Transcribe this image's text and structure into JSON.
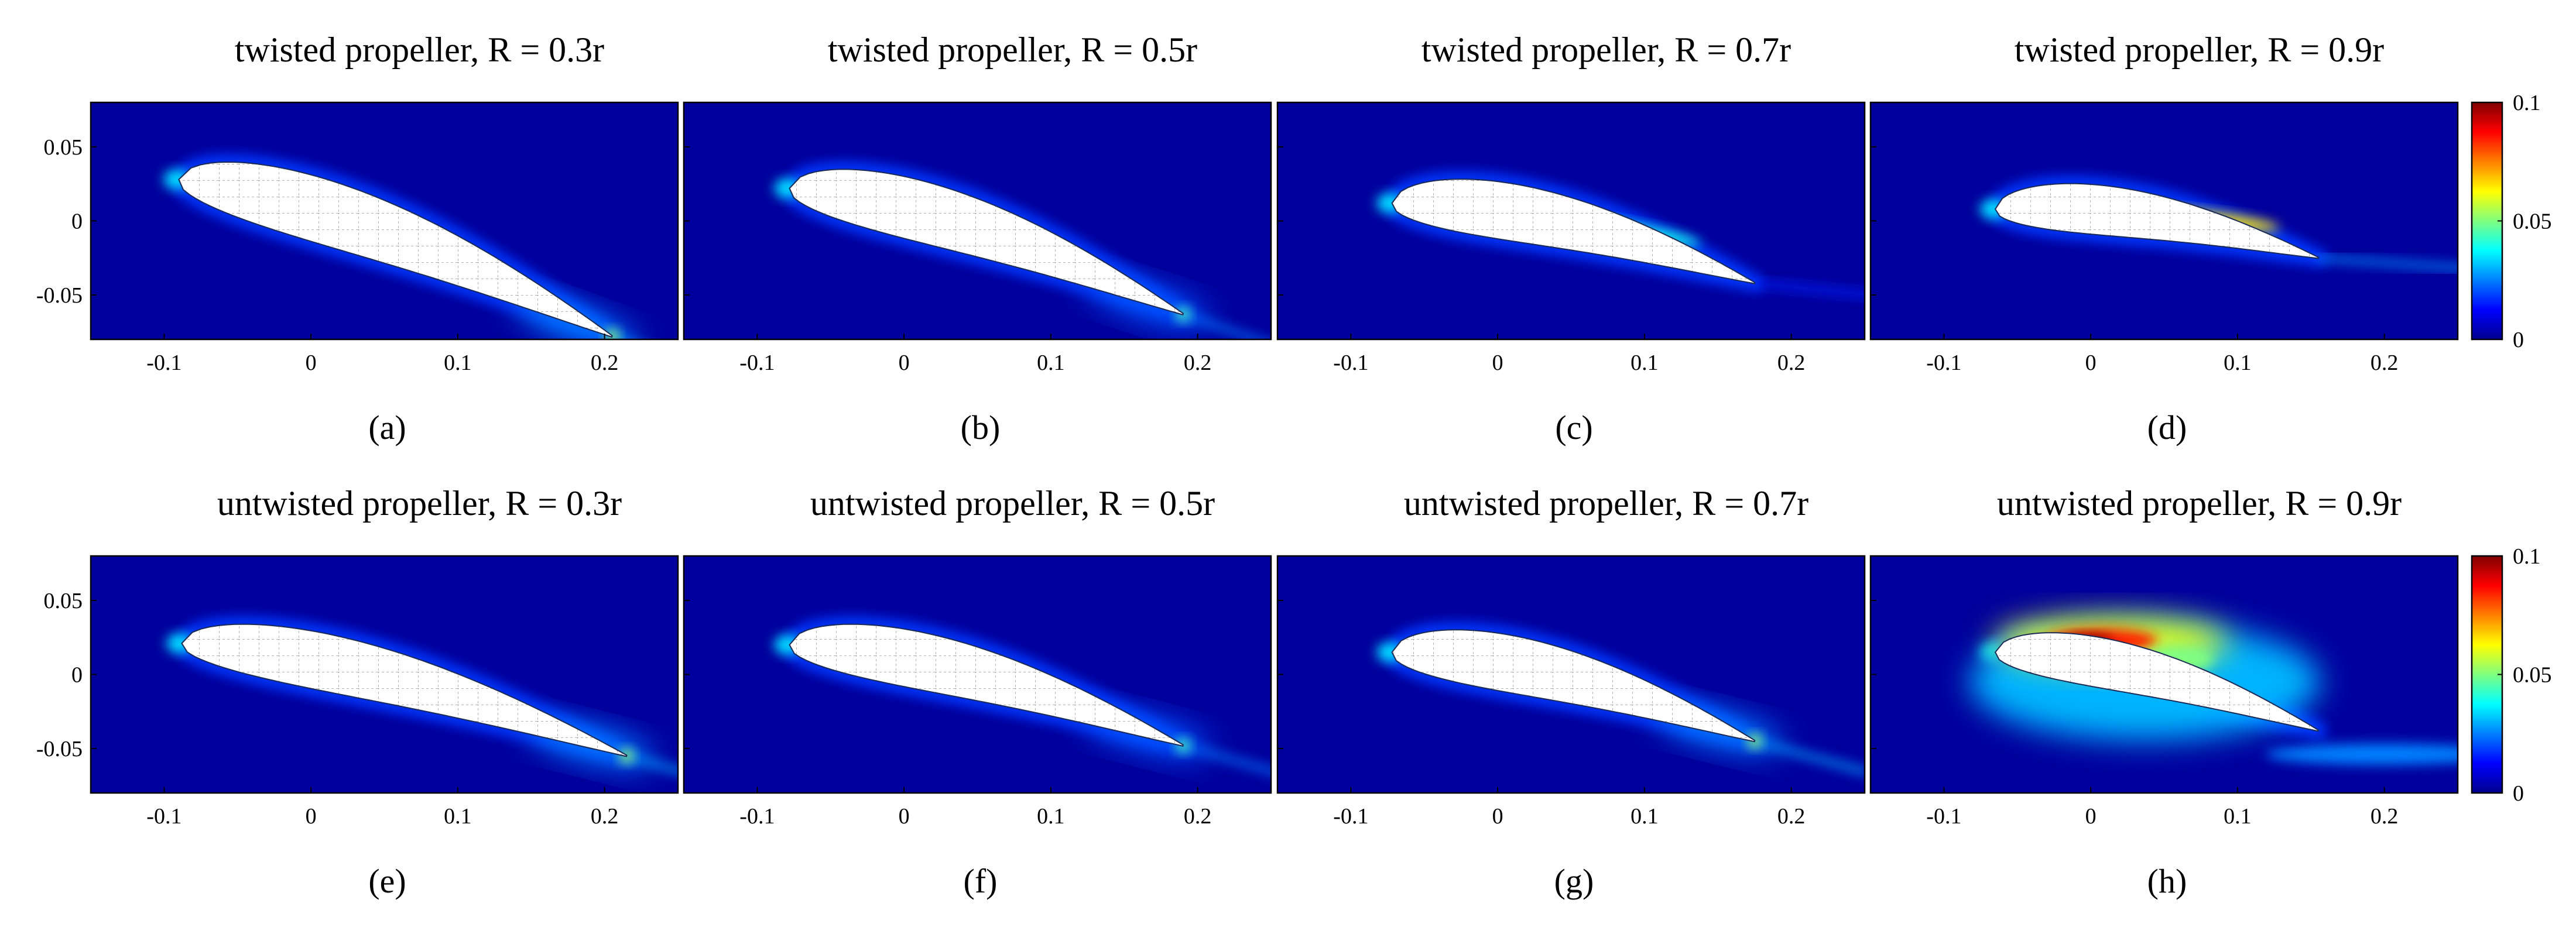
{
  "chart_data": {
    "type": "heatmap",
    "xlim": [
      -0.15,
      0.25
    ],
    "ylim": [
      -0.08,
      0.08
    ],
    "x_ticks": [
      "-0.1",
      "0",
      "0.1",
      "0.2"
    ],
    "y_ticks": [
      "0.05",
      "0",
      "-0.05"
    ],
    "colorbar": {
      "min": 0,
      "max": 0.1,
      "ticks": [
        "0.1",
        "0.05",
        "0"
      ]
    },
    "panels": [
      {
        "title": "twisted propeller, R = 0.3r",
        "caption": "(a)",
        "le": [
          -0.09,
          0.028
        ],
        "te": [
          0.205,
          -0.078
        ],
        "thickness": 0.036,
        "hot_region": "trailing-edge",
        "hot_level": 0.035
      },
      {
        "title": "twisted propeller, R = 0.5r",
        "caption": "(b)",
        "le": [
          -0.078,
          0.022
        ],
        "te": [
          0.19,
          -0.063
        ],
        "thickness": 0.034,
        "hot_region": "trailing-edge",
        "hot_level": 0.03
      },
      {
        "title": "twisted propeller, R = 0.7r",
        "caption": "(c)",
        "le": [
          -0.072,
          0.012
        ],
        "te": [
          0.175,
          -0.042
        ],
        "thickness": 0.032,
        "hot_region": "suction-side",
        "hot_level": 0.04
      },
      {
        "title": "twisted propeller, R = 0.9r",
        "caption": "(d)",
        "le": [
          -0.065,
          0.008
        ],
        "te": [
          0.155,
          -0.025
        ],
        "thickness": 0.028,
        "hot_region": "suction-side",
        "hot_level": 0.065
      },
      {
        "title": "untwisted propeller, R = 0.3r",
        "caption": "(e)",
        "le": [
          -0.088,
          0.021
        ],
        "te": [
          0.215,
          -0.055
        ],
        "thickness": 0.032,
        "hot_region": "trailing-edge",
        "hot_level": 0.035
      },
      {
        "title": "untwisted propeller, R = 0.5r",
        "caption": "(f)",
        "le": [
          -0.078,
          0.02
        ],
        "te": [
          0.19,
          -0.048
        ],
        "thickness": 0.032,
        "hot_region": "trailing-edge",
        "hot_level": 0.03
      },
      {
        "title": "untwisted propeller, R = 0.7r",
        "caption": "(g)",
        "le": [
          -0.072,
          0.015
        ],
        "te": [
          0.175,
          -0.045
        ],
        "thickness": 0.032,
        "hot_region": "trailing-edge",
        "hot_level": 0.035
      },
      {
        "title": "untwisted propeller, R = 0.9r",
        "caption": "(h)",
        "le": [
          -0.065,
          0.015
        ],
        "te": [
          0.155,
          -0.038
        ],
        "thickness": 0.028,
        "hot_region": "separation",
        "hot_level": 0.1
      }
    ]
  }
}
